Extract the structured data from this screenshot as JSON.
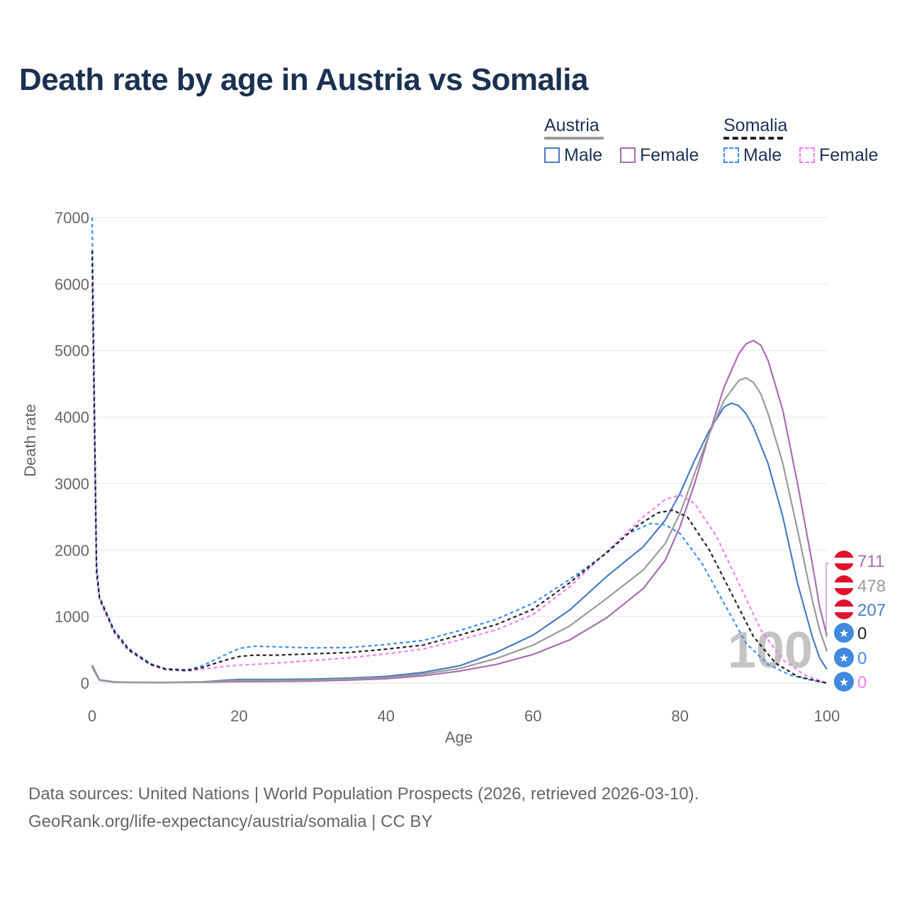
{
  "title": "Death rate by age in Austria vs Somalia",
  "legend": {
    "groups": [
      {
        "name": "Austria",
        "items": [
          "Male",
          "Female"
        ]
      },
      {
        "name": "Somalia",
        "items": [
          "Male",
          "Female"
        ]
      }
    ]
  },
  "colors": {
    "austria_male": "#4a7ac3",
    "austria_female": "#a86cb1",
    "austria_total": "#999999",
    "somalia_male": "#3d8ef0",
    "somalia_female": "#f77ef2",
    "somalia_total": "#222222",
    "austria_flag": "#e2112d",
    "somalia_flag": "#4189dd"
  },
  "chart_data": {
    "type": "line",
    "title": "Death rate by age in Austria vs Somalia",
    "xlabel": "Age",
    "ylabel": "Death rate",
    "xlim": [
      0,
      100
    ],
    "ylim": [
      0,
      7000
    ],
    "x_ticks": [
      0,
      20,
      40,
      60,
      80,
      100
    ],
    "y_ticks": [
      0,
      1000,
      2000,
      3000,
      4000,
      5000,
      6000,
      7000
    ],
    "grid": true,
    "year_watermark": "100",
    "series": [
      {
        "name": "Austria Male",
        "country": "Austria",
        "sex": "Male",
        "style": "solid",
        "color_key": "austria_male",
        "points": [
          [
            0,
            270
          ],
          [
            1,
            50
          ],
          [
            3,
            18
          ],
          [
            5,
            12
          ],
          [
            10,
            10
          ],
          [
            15,
            18
          ],
          [
            18,
            42
          ],
          [
            20,
            55
          ],
          [
            25,
            55
          ],
          [
            30,
            60
          ],
          [
            35,
            75
          ],
          [
            40,
            100
          ],
          [
            45,
            160
          ],
          [
            50,
            260
          ],
          [
            55,
            460
          ],
          [
            60,
            720
          ],
          [
            65,
            1100
          ],
          [
            70,
            1600
          ],
          [
            75,
            2050
          ],
          [
            78,
            2450
          ],
          [
            80,
            2850
          ],
          [
            82,
            3350
          ],
          [
            84,
            3800
          ],
          [
            86,
            4150
          ],
          [
            87,
            4210
          ],
          [
            88,
            4170
          ],
          [
            89,
            4050
          ],
          [
            90,
            3850
          ],
          [
            92,
            3300
          ],
          [
            94,
            2500
          ],
          [
            96,
            1500
          ],
          [
            98,
            700
          ],
          [
            99,
            380
          ],
          [
            100,
            207
          ]
        ]
      },
      {
        "name": "Austria Female",
        "country": "Austria",
        "sex": "Female",
        "style": "solid",
        "color_key": "austria_female",
        "points": [
          [
            0,
            240
          ],
          [
            1,
            40
          ],
          [
            3,
            15
          ],
          [
            5,
            10
          ],
          [
            10,
            8
          ],
          [
            15,
            12
          ],
          [
            18,
            20
          ],
          [
            20,
            22
          ],
          [
            25,
            25
          ],
          [
            30,
            30
          ],
          [
            35,
            45
          ],
          [
            40,
            65
          ],
          [
            45,
            110
          ],
          [
            50,
            180
          ],
          [
            55,
            280
          ],
          [
            60,
            430
          ],
          [
            65,
            650
          ],
          [
            70,
            980
          ],
          [
            75,
            1420
          ],
          [
            78,
            1850
          ],
          [
            80,
            2350
          ],
          [
            82,
            3000
          ],
          [
            84,
            3750
          ],
          [
            86,
            4450
          ],
          [
            88,
            4950
          ],
          [
            89,
            5100
          ],
          [
            90,
            5150
          ],
          [
            91,
            5080
          ],
          [
            92,
            4850
          ],
          [
            94,
            4100
          ],
          [
            96,
            3000
          ],
          [
            98,
            1800
          ],
          [
            99,
            1150
          ],
          [
            100,
            711
          ]
        ]
      },
      {
        "name": "Austria Total",
        "country": "Austria",
        "sex": "Total",
        "style": "solid",
        "color_key": "austria_total",
        "points": [
          [
            0,
            255
          ],
          [
            1,
            45
          ],
          [
            3,
            16
          ],
          [
            5,
            11
          ],
          [
            10,
            9
          ],
          [
            15,
            15
          ],
          [
            18,
            30
          ],
          [
            20,
            38
          ],
          [
            25,
            40
          ],
          [
            30,
            45
          ],
          [
            35,
            60
          ],
          [
            40,
            82
          ],
          [
            45,
            135
          ],
          [
            50,
            220
          ],
          [
            55,
            370
          ],
          [
            60,
            570
          ],
          [
            65,
            860
          ],
          [
            70,
            1270
          ],
          [
            75,
            1700
          ],
          [
            78,
            2100
          ],
          [
            80,
            2550
          ],
          [
            82,
            3150
          ],
          [
            84,
            3750
          ],
          [
            86,
            4250
          ],
          [
            88,
            4550
          ],
          [
            89,
            4590
          ],
          [
            90,
            4520
          ],
          [
            91,
            4350
          ],
          [
            92,
            4050
          ],
          [
            94,
            3300
          ],
          [
            96,
            2300
          ],
          [
            98,
            1250
          ],
          [
            99,
            800
          ],
          [
            100,
            478
          ]
        ]
      },
      {
        "name": "Somalia Male",
        "country": "Somalia",
        "sex": "Male",
        "style": "dashed",
        "color_key": "somalia_male",
        "points": [
          [
            0,
            7000
          ],
          [
            0.6,
            1800
          ],
          [
            1,
            1300
          ],
          [
            3,
            800
          ],
          [
            5,
            520
          ],
          [
            8,
            290
          ],
          [
            10,
            215
          ],
          [
            13,
            200
          ],
          [
            15,
            260
          ],
          [
            18,
            420
          ],
          [
            20,
            520
          ],
          [
            22,
            555
          ],
          [
            25,
            545
          ],
          [
            30,
            530
          ],
          [
            35,
            535
          ],
          [
            40,
            580
          ],
          [
            45,
            640
          ],
          [
            50,
            790
          ],
          [
            55,
            960
          ],
          [
            60,
            1200
          ],
          [
            65,
            1560
          ],
          [
            70,
            1950
          ],
          [
            73,
            2250
          ],
          [
            76,
            2400
          ],
          [
            78,
            2380
          ],
          [
            80,
            2250
          ],
          [
            83,
            1800
          ],
          [
            86,
            1200
          ],
          [
            89,
            600
          ],
          [
            92,
            280
          ],
          [
            95,
            120
          ],
          [
            98,
            40
          ],
          [
            100,
            0
          ]
        ]
      },
      {
        "name": "Somalia Female",
        "country": "Somalia",
        "sex": "Female",
        "style": "dashed",
        "color_key": "somalia_female",
        "points": [
          [
            0,
            6000
          ],
          [
            0.6,
            1600
          ],
          [
            1,
            1250
          ],
          [
            3,
            750
          ],
          [
            5,
            480
          ],
          [
            8,
            270
          ],
          [
            10,
            200
          ],
          [
            13,
            180
          ],
          [
            15,
            210
          ],
          [
            18,
            250
          ],
          [
            20,
            270
          ],
          [
            25,
            300
          ],
          [
            30,
            340
          ],
          [
            35,
            380
          ],
          [
            40,
            440
          ],
          [
            45,
            510
          ],
          [
            50,
            650
          ],
          [
            55,
            800
          ],
          [
            60,
            1030
          ],
          [
            65,
            1450
          ],
          [
            70,
            1970
          ],
          [
            75,
            2500
          ],
          [
            78,
            2760
          ],
          [
            80,
            2830
          ],
          [
            82,
            2700
          ],
          [
            85,
            2200
          ],
          [
            88,
            1500
          ],
          [
            91,
            800
          ],
          [
            94,
            350
          ],
          [
            97,
            120
          ],
          [
            100,
            0
          ]
        ]
      },
      {
        "name": "Somalia Total",
        "country": "Somalia",
        "sex": "Total",
        "style": "dashed",
        "color_key": "somalia_total",
        "points": [
          [
            0,
            6500
          ],
          [
            0.6,
            1700
          ],
          [
            1,
            1280
          ],
          [
            3,
            780
          ],
          [
            5,
            500
          ],
          [
            8,
            280
          ],
          [
            10,
            210
          ],
          [
            13,
            190
          ],
          [
            15,
            235
          ],
          [
            18,
            340
          ],
          [
            20,
            400
          ],
          [
            22,
            420
          ],
          [
            25,
            420
          ],
          [
            30,
            440
          ],
          [
            35,
            460
          ],
          [
            40,
            510
          ],
          [
            45,
            570
          ],
          [
            50,
            720
          ],
          [
            55,
            880
          ],
          [
            60,
            1110
          ],
          [
            65,
            1510
          ],
          [
            70,
            1960
          ],
          [
            74,
            2350
          ],
          [
            77,
            2560
          ],
          [
            79,
            2600
          ],
          [
            81,
            2500
          ],
          [
            84,
            2000
          ],
          [
            87,
            1350
          ],
          [
            90,
            700
          ],
          [
            93,
            300
          ],
          [
            96,
            100
          ],
          [
            100,
            0
          ]
        ]
      }
    ],
    "end_labels": [
      {
        "value": "711",
        "country": "Austria",
        "color_key": "austria_female"
      },
      {
        "value": "478",
        "country": "Austria",
        "color_key": "austria_total"
      },
      {
        "value": "207",
        "country": "Austria",
        "color_key": "austria_male"
      },
      {
        "value": "0",
        "country": "Somalia",
        "color_key": "somalia_total"
      },
      {
        "value": "0",
        "country": "Somalia",
        "color_key": "somalia_male"
      },
      {
        "value": "0",
        "country": "Somalia",
        "color_key": "somalia_female"
      }
    ]
  },
  "footer": {
    "line1": "Data sources: United Nations | World Population Prospects (2026, retrieved 2026-03-10).",
    "line2": "GeoRank.org/life-expectancy/austria/somalia | CC BY"
  }
}
